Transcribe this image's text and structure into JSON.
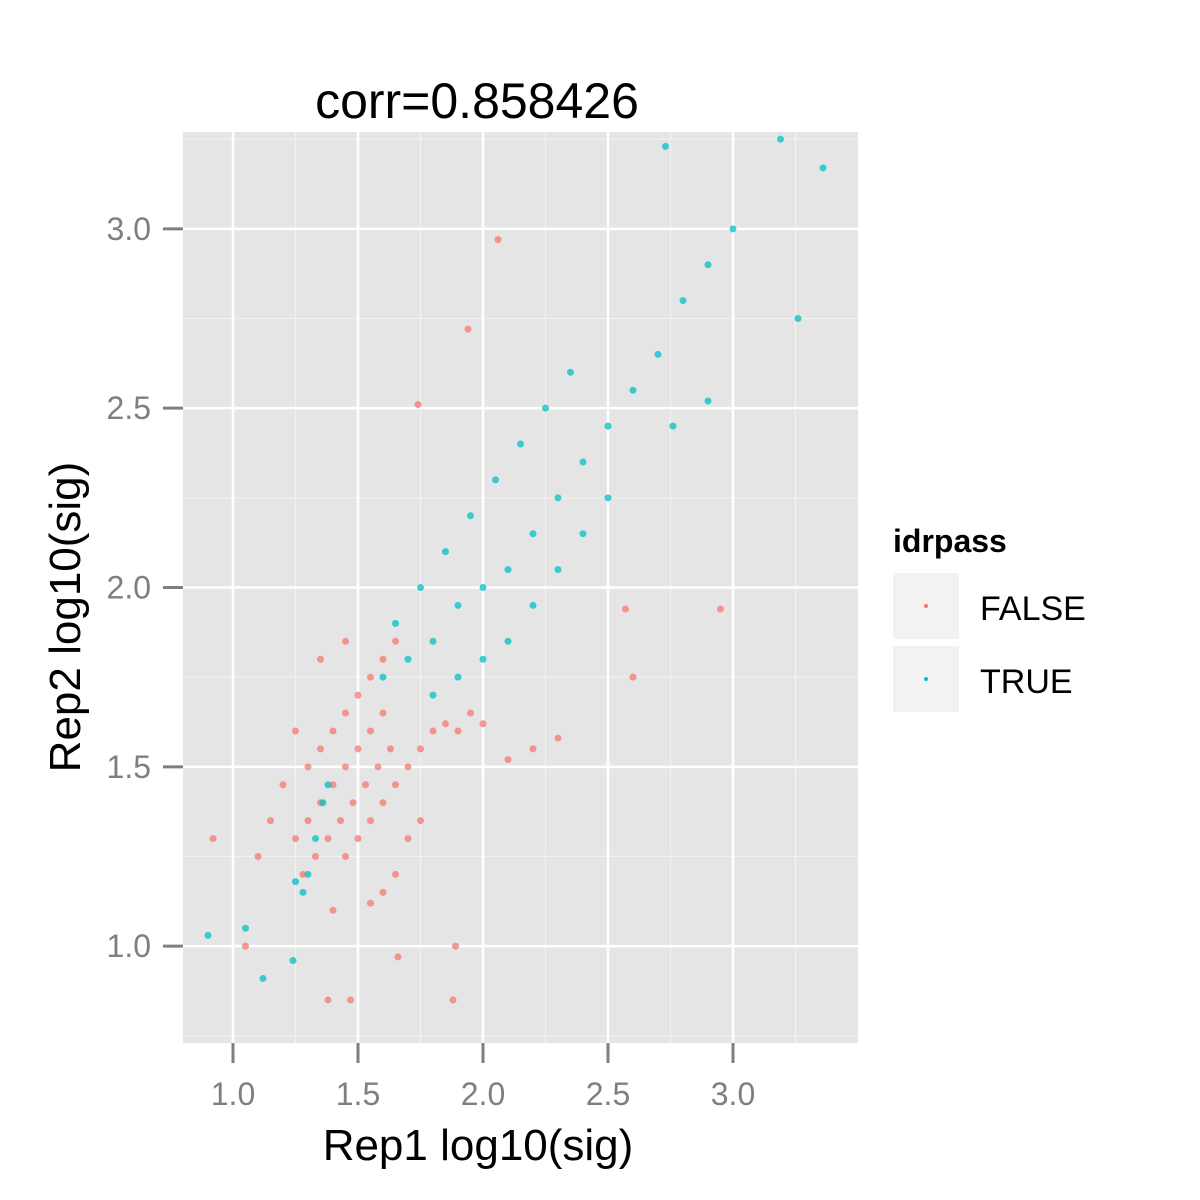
{
  "chart_data": {
    "type": "scatter",
    "title": "corr=0.858426",
    "xlabel": "Rep1 log10(sig)",
    "ylabel": "Rep2 log10(sig)",
    "xlim": [
      0.8,
      3.5
    ],
    "ylim": [
      0.73,
      3.27
    ],
    "x_ticks": [
      "1.0",
      "1.5",
      "2.0",
      "2.5",
      "3.0"
    ],
    "y_ticks": [
      "1.0",
      "1.5",
      "2.0",
      "2.5",
      "3.0"
    ],
    "x_tick_values": [
      1.0,
      1.5,
      2.0,
      2.5,
      3.0
    ],
    "y_tick_values": [
      1.0,
      1.5,
      2.0,
      2.5,
      3.0
    ],
    "grid": true,
    "background": "#e5e5e5",
    "legend": {
      "title": "idrpass",
      "position": "right",
      "entries": [
        "FALSE",
        "TRUE"
      ]
    },
    "series": [
      {
        "name": "FALSE",
        "color": "#f8766d",
        "values": [
          [
            1.25,
            1.3
          ],
          [
            1.3,
            1.35
          ],
          [
            1.35,
            1.4
          ],
          [
            1.4,
            1.45
          ],
          [
            1.45,
            1.5
          ],
          [
            1.5,
            1.55
          ],
          [
            1.55,
            1.6
          ],
          [
            1.6,
            1.65
          ],
          [
            1.28,
            1.2
          ],
          [
            1.33,
            1.25
          ],
          [
            1.38,
            1.3
          ],
          [
            1.43,
            1.35
          ],
          [
            1.48,
            1.4
          ],
          [
            1.53,
            1.45
          ],
          [
            1.58,
            1.5
          ],
          [
            1.63,
            1.55
          ],
          [
            1.45,
            1.25
          ],
          [
            1.5,
            1.3
          ],
          [
            1.55,
            1.35
          ],
          [
            1.6,
            1.4
          ],
          [
            1.65,
            1.45
          ],
          [
            1.7,
            1.5
          ],
          [
            1.75,
            1.55
          ],
          [
            1.8,
            1.6
          ],
          [
            1.5,
            1.7
          ],
          [
            1.55,
            1.75
          ],
          [
            1.6,
            1.8
          ],
          [
            1.65,
            1.85
          ],
          [
            1.45,
            1.65
          ],
          [
            1.4,
            1.6
          ],
          [
            1.35,
            1.55
          ],
          [
            1.3,
            1.5
          ],
          [
            1.85,
            1.62
          ],
          [
            1.9,
            1.6
          ],
          [
            1.95,
            1.65
          ],
          [
            2.0,
            1.62
          ],
          [
            1.7,
            1.3
          ],
          [
            1.75,
            1.35
          ],
          [
            1.65,
            1.2
          ],
          [
            1.6,
            1.15
          ],
          [
            1.2,
            1.45
          ],
          [
            1.25,
            1.6
          ],
          [
            1.15,
            1.35
          ],
          [
            1.1,
            1.25
          ],
          [
            1.4,
            1.1
          ],
          [
            1.55,
            1.12
          ],
          [
            1.35,
            1.8
          ],
          [
            1.45,
            1.85
          ],
          [
            0.92,
            1.3
          ],
          [
            1.05,
            1.0
          ],
          [
            1.38,
            0.85
          ],
          [
            1.47,
            0.85
          ],
          [
            1.88,
            0.85
          ],
          [
            1.66,
            0.97
          ],
          [
            1.89,
            1.0
          ],
          [
            1.94,
            2.72
          ],
          [
            2.06,
            2.97
          ],
          [
            1.74,
            2.51
          ],
          [
            2.57,
            1.94
          ],
          [
            2.95,
            1.94
          ],
          [
            2.6,
            1.75
          ],
          [
            2.3,
            1.58
          ],
          [
            2.2,
            1.55
          ],
          [
            2.1,
            1.52
          ]
        ]
      },
      {
        "name": "TRUE",
        "color": "#00bfc4",
        "values": [
          [
            1.6,
            1.75
          ],
          [
            1.7,
            1.8
          ],
          [
            1.8,
            1.85
          ],
          [
            1.9,
            1.95
          ],
          [
            2.0,
            2.0
          ],
          [
            2.1,
            2.05
          ],
          [
            2.2,
            2.15
          ],
          [
            2.3,
            2.25
          ],
          [
            2.4,
            2.35
          ],
          [
            2.5,
            2.45
          ],
          [
            2.6,
            2.55
          ],
          [
            2.7,
            2.65
          ],
          [
            2.8,
            2.8
          ],
          [
            2.9,
            2.9
          ],
          [
            3.0,
            3.0
          ],
          [
            1.65,
            1.9
          ],
          [
            1.75,
            2.0
          ],
          [
            1.85,
            2.1
          ],
          [
            1.95,
            2.2
          ],
          [
            2.05,
            2.3
          ],
          [
            2.15,
            2.4
          ],
          [
            2.25,
            2.5
          ],
          [
            2.35,
            2.6
          ],
          [
            1.8,
            1.7
          ],
          [
            1.9,
            1.75
          ],
          [
            2.0,
            1.8
          ],
          [
            2.1,
            1.85
          ],
          [
            2.2,
            1.95
          ],
          [
            2.3,
            2.05
          ],
          [
            2.4,
            2.15
          ],
          [
            2.5,
            2.25
          ],
          [
            1.3,
            1.2
          ],
          [
            1.33,
            1.3
          ],
          [
            1.36,
            1.4
          ],
          [
            1.28,
            1.15
          ],
          [
            1.38,
            1.45
          ],
          [
            1.25,
            1.18
          ],
          [
            1.05,
            1.05
          ],
          [
            0.9,
            1.03
          ],
          [
            1.12,
            0.91
          ],
          [
            1.24,
            0.96
          ],
          [
            2.73,
            3.23
          ],
          [
            3.19,
            3.25
          ],
          [
            3.36,
            3.17
          ],
          [
            3.26,
            2.75
          ],
          [
            2.9,
            2.52
          ],
          [
            2.76,
            2.45
          ]
        ]
      }
    ]
  }
}
